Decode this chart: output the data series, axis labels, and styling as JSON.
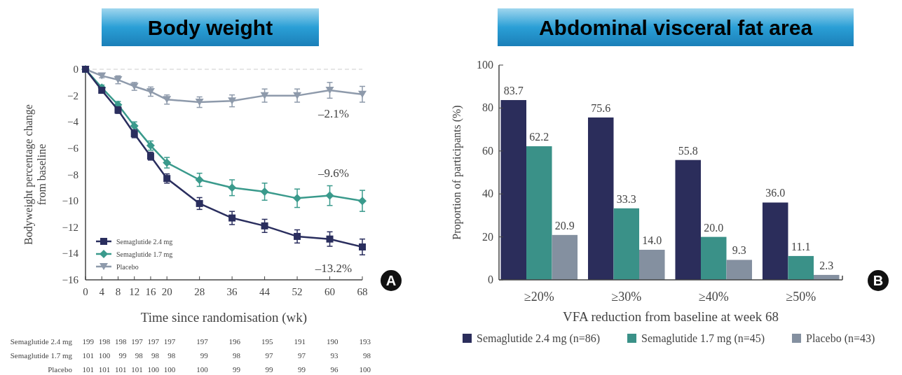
{
  "chart_data": [
    {
      "type": "line",
      "title": "Body weight",
      "xlabel": "Time since randomisation (wk)",
      "ylabel": "Bodyweight percentage change from baseline",
      "x": [
        0,
        4,
        8,
        12,
        16,
        20,
        28,
        36,
        44,
        52,
        60,
        68
      ],
      "xlim": [
        0,
        68
      ],
      "xticks": [
        0,
        4,
        8,
        12,
        16,
        20,
        28,
        36,
        44,
        52,
        60,
        68
      ],
      "ylim": [
        -16,
        0
      ],
      "yticks": [
        {
          "value": 0,
          "label": "0"
        },
        {
          "value": -2,
          "label": "−2"
        },
        {
          "value": -4,
          "label": "−4"
        },
        {
          "value": -6,
          "label": "−6"
        },
        {
          "value": -8,
          "label": "−8"
        },
        {
          "value": -10,
          "label": "−10"
        },
        {
          "value": -12,
          "label": "−12"
        },
        {
          "value": -14,
          "label": "−14"
        },
        {
          "value": -16,
          "label": "−16"
        }
      ],
      "series": [
        {
          "name": "Semaglutide 2.4 mg",
          "color": "#2a2e5e",
          "marker": "square",
          "values": [
            0,
            -1.6,
            -3.1,
            -4.9,
            -6.6,
            -8.3,
            -10.2,
            -11.3,
            -11.9,
            -12.7,
            -12.9,
            -13.5
          ],
          "errors": [
            0,
            0.2,
            0.25,
            0.3,
            0.3,
            0.35,
            0.45,
            0.5,
            0.5,
            0.5,
            0.55,
            0.6
          ]
        },
        {
          "name": "Semaglutide 1.7 mg",
          "color": "#3a9a8c",
          "marker": "diamond",
          "values": [
            0,
            -1.4,
            -2.7,
            -4.3,
            -5.8,
            -7.1,
            -8.4,
            -9.0,
            -9.3,
            -9.8,
            -9.6,
            -10.0
          ],
          "errors": [
            0,
            0.2,
            0.25,
            0.3,
            0.35,
            0.4,
            0.5,
            0.6,
            0.65,
            0.7,
            0.75,
            0.8
          ]
        },
        {
          "name": "Placebo",
          "color": "#8e9aab",
          "marker": "triangle",
          "values": [
            0,
            -0.5,
            -0.8,
            -1.3,
            -1.7,
            -2.3,
            -2.5,
            -2.4,
            -2.0,
            -2.0,
            -1.6,
            -1.9
          ],
          "errors": [
            0,
            0.15,
            0.3,
            0.3,
            0.35,
            0.35,
            0.4,
            0.45,
            0.5,
            0.5,
            0.6,
            0.6
          ]
        }
      ],
      "ref_lines": [
        {
          "axis": "y",
          "value": 0,
          "color": "#cccccc",
          "line_style": "dashed"
        }
      ],
      "legend": "bottom left",
      "grid": false,
      "annotations": [
        "–2.1%",
        "–9.6%",
        "–13.2%",
        "A",
        "Semaglutide 2.4 mg",
        "199 198 198 197 197 197 197 196 195 191 190 193",
        "Semaglutide 1.7 mg",
        "101 100 99 98 98 98 99 98 97 97 93 98",
        "Placebo",
        "101 101 101 101 100 100 100 99 99 99 96 100"
      ]
    },
    {
      "type": "bar",
      "title": "Abdominal visceral fat area",
      "xlabel": "VFA reduction from baseline at week 68",
      "ylabel": "Proportion of participants (%)",
      "categories": [
        "≥20%",
        "≥30%",
        "≥40%",
        "≥50%"
      ],
      "ylim": [
        0,
        100
      ],
      "yticks": [
        0,
        20,
        40,
        60,
        80,
        100
      ],
      "series": [
        {
          "name": "Semaglutide 2.4 mg (n=86)",
          "color": "#2b2d5b",
          "values": [
            83.7,
            75.6,
            55.8,
            36.0
          ],
          "value_labels": [
            "83.7",
            "75.6",
            "55.8",
            "36.0"
          ]
        },
        {
          "name": "Semaglutide 1.7 mg (n=45)",
          "color": "#3a9188",
          "values": [
            62.2,
            33.3,
            20.0,
            11.1
          ],
          "value_labels": [
            "62.2",
            "33.3",
            "20.0",
            "11.1"
          ]
        },
        {
          "name": "Placebo (n=43)",
          "color": "#8490a0",
          "values": [
            20.9,
            14.0,
            9.3,
            2.3
          ],
          "value_labels": [
            "20.9",
            "14.0",
            "9.3",
            "2.3"
          ]
        }
      ],
      "legend": "bottom",
      "grid": false,
      "annotations": [
        "B"
      ]
    }
  ]
}
